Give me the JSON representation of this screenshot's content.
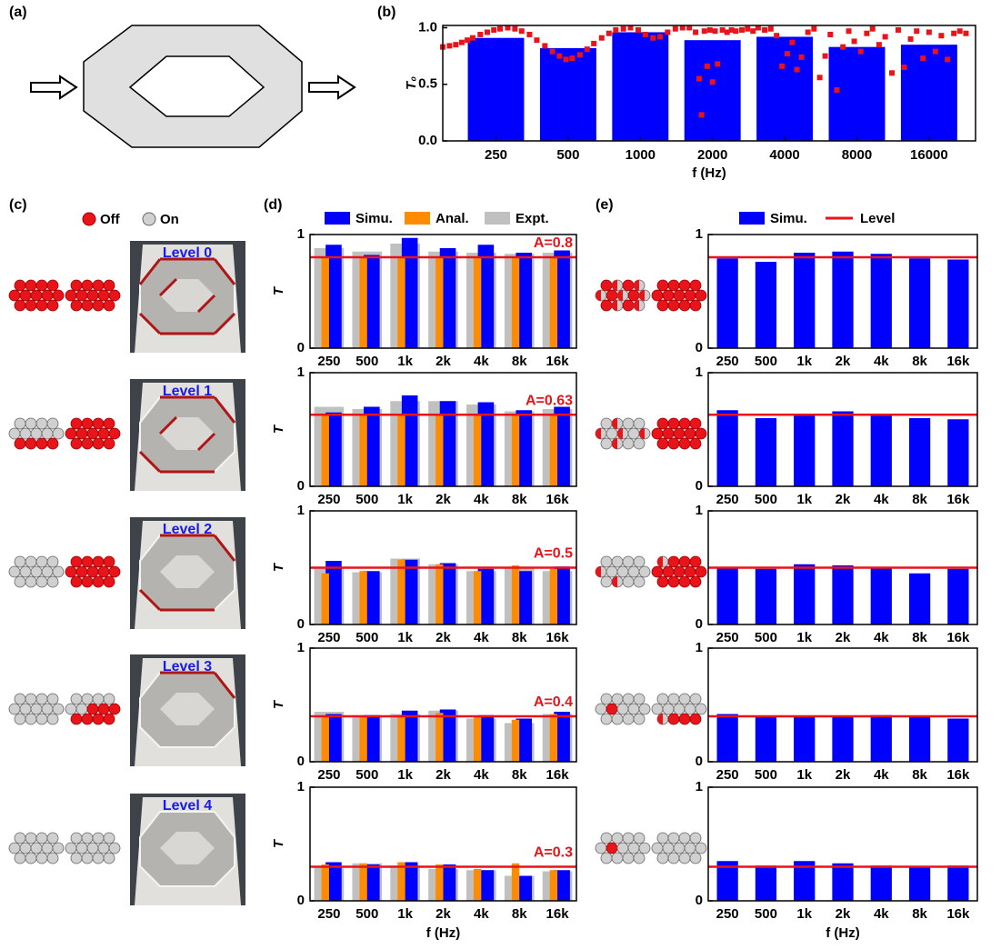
{
  "panels": [
    "(a)",
    "(b)",
    "(c)",
    "(d)",
    "(e)"
  ],
  "panel_c": {
    "legend": [
      "Off",
      "On"
    ],
    "levels": [
      "Level 0",
      "Level 1",
      "Level 2",
      "Level 3",
      "Level 4"
    ]
  },
  "chart_data": [
    {
      "type": "bar",
      "xscale": "log",
      "x": [
        250,
        500,
        1000,
        2000,
        4000,
        8000,
        16000
      ],
      "values": [
        0.91,
        0.82,
        0.96,
        0.89,
        0.92,
        0.83,
        0.85
      ],
      "color": "#0000ff",
      "overlay": {
        "type": "scatter",
        "color": "#e8141a",
        "x": [
          150,
          160,
          170,
          180,
          190,
          200,
          215,
          230,
          245,
          260,
          280,
          300,
          320,
          345,
          370,
          400,
          430,
          460,
          490,
          520,
          560,
          600,
          640,
          690,
          740,
          790,
          850,
          910,
          980,
          1050,
          1130,
          1210,
          1300,
          1400,
          1500,
          1600,
          1700,
          1760,
          1800,
          1850,
          1900,
          1950,
          2000,
          2050,
          2100,
          2200,
          2300,
          2400,
          2500,
          2650,
          2800,
          2950,
          3100,
          3300,
          3500,
          3700,
          3900,
          4100,
          4300,
          4500,
          4700,
          5000,
          5300,
          5600,
          5900,
          6200,
          6600,
          7000,
          7400,
          7800,
          8300,
          8800,
          9300,
          9900,
          10500,
          11200,
          11900,
          12600,
          13400,
          14200,
          15100,
          16000,
          17000,
          18000,
          19100,
          20300,
          21500,
          22800
        ],
        "values": [
          0.83,
          0.84,
          0.85,
          0.87,
          0.89,
          0.91,
          0.94,
          0.96,
          0.98,
          0.99,
          1.0,
          0.99,
          0.97,
          0.94,
          0.89,
          0.84,
          0.79,
          0.75,
          0.72,
          0.73,
          0.76,
          0.81,
          0.86,
          0.91,
          0.95,
          0.98,
          0.99,
          1.0,
          0.98,
          0.94,
          0.91,
          0.92,
          0.96,
          0.99,
          1.0,
          1.0,
          0.96,
          0.55,
          0.23,
          0.97,
          0.66,
          0.98,
          0.52,
          0.97,
          0.68,
          0.98,
          0.96,
          0.98,
          0.97,
          0.98,
          0.99,
          0.97,
          1.0,
          0.98,
          0.99,
          0.93,
          0.66,
          0.77,
          0.87,
          0.63,
          0.74,
          0.96,
          0.99,
          0.56,
          0.75,
          0.94,
          0.45,
          0.83,
          0.97,
          0.88,
          0.79,
          0.95,
          0.99,
          0.85,
          0.92,
          0.6,
          0.98,
          0.65,
          0.9,
          0.97,
          0.73,
          0.96,
          0.79,
          0.93,
          0.72,
          0.95,
          0.97,
          0.95
        ]
      },
      "xlim": [
        150,
        25000
      ],
      "xticks": [
        250,
        500,
        1000,
        2000,
        4000,
        8000,
        16000
      ],
      "ylim": [
        0,
        1.02
      ],
      "yticks": [
        {
          "value": 0,
          "label": "0.0"
        },
        {
          "value": 0.5,
          "label": "0.5"
        },
        {
          "value": 1,
          "label": "1.0"
        }
      ],
      "xlabel": "f (Hz)",
      "ylabel": "T₀"
    },
    {
      "type": "bar",
      "categories": [
        "250",
        "500",
        "1k",
        "2k",
        "4k",
        "8k",
        "16k"
      ],
      "series": [
        {
          "name": "Simu.",
          "color": "#0000ff",
          "values": [
            0.91,
            0.82,
            0.97,
            0.88,
            0.91,
            0.84,
            0.86
          ]
        },
        {
          "name": "Anal.",
          "color": "#ff8c00",
          "values": [
            0.8,
            0.8,
            0.8,
            0.8,
            0.8,
            0.8,
            0.8
          ]
        },
        {
          "name": "Expt.",
          "color": "#c0c0c0",
          "values": [
            0.88,
            0.85,
            0.92,
            0.85,
            0.84,
            0.83,
            0.84
          ]
        }
      ],
      "ylim": [
        0,
        1
      ],
      "yticks": [
        0,
        1
      ],
      "ylabel": "T",
      "level": 0.8,
      "level_label": "A=0.8",
      "level_color": "#e8141a"
    },
    {
      "type": "bar",
      "categories": [
        "250",
        "500",
        "1k",
        "2k",
        "4k",
        "8k",
        "16k"
      ],
      "series": [
        {
          "color": "#0000ff",
          "values": [
            0.65,
            0.7,
            0.8,
            0.75,
            0.74,
            0.67,
            0.7
          ]
        },
        {
          "color": "#ff8c00",
          "values": [
            0.63,
            0.63,
            0.63,
            0.63,
            0.63,
            0.63,
            0.63
          ]
        },
        {
          "color": "#c0c0c0",
          "values": [
            0.7,
            0.68,
            0.75,
            0.75,
            0.72,
            0.66,
            0.68
          ]
        }
      ],
      "ylim": [
        0,
        1
      ],
      "yticks": [
        0,
        1
      ],
      "ylabel": "T",
      "level": 0.63,
      "level_label": "A=0.63",
      "level_color": "#e8141a"
    },
    {
      "type": "bar",
      "categories": [
        "250",
        "500",
        "1k",
        "2k",
        "4k",
        "8k",
        "16k"
      ],
      "series": [
        {
          "color": "#0000ff",
          "values": [
            0.56,
            0.47,
            0.57,
            0.54,
            0.49,
            0.47,
            0.51
          ]
        },
        {
          "color": "#ff8c00",
          "values": [
            0.45,
            0.47,
            0.57,
            0.53,
            0.47,
            0.52,
            0.49
          ]
        },
        {
          "color": "#c0c0c0",
          "values": [
            0.5,
            0.46,
            0.58,
            0.53,
            0.47,
            0.5,
            0.47
          ]
        }
      ],
      "ylim": [
        0,
        1
      ],
      "yticks": [
        0,
        1
      ],
      "ylabel": "T",
      "level": 0.5,
      "level_label": "A=0.5",
      "level_color": "#e8141a"
    },
    {
      "type": "bar",
      "categories": [
        "250",
        "500",
        "1k",
        "2k",
        "4k",
        "8k",
        "16k"
      ],
      "series": [
        {
          "color": "#0000ff",
          "values": [
            0.42,
            0.41,
            0.45,
            0.46,
            0.41,
            0.38,
            0.44
          ]
        },
        {
          "color": "#ff8c00",
          "values": [
            0.41,
            0.4,
            0.41,
            0.43,
            0.4,
            0.37,
            0.42
          ]
        },
        {
          "color": "#c0c0c0",
          "values": [
            0.44,
            0.41,
            0.42,
            0.45,
            0.38,
            0.34,
            0.42
          ]
        }
      ],
      "ylim": [
        0,
        1
      ],
      "yticks": [
        0,
        1
      ],
      "ylabel": "T",
      "level": 0.4,
      "level_label": "A=0.4",
      "level_color": "#e8141a"
    },
    {
      "type": "bar",
      "categories": [
        "250",
        "500",
        "1k",
        "2k",
        "4k",
        "8k",
        "16k"
      ],
      "series": [
        {
          "color": "#0000ff",
          "values": [
            0.34,
            0.32,
            0.34,
            0.32,
            0.27,
            0.22,
            0.27
          ]
        },
        {
          "color": "#ff8c00",
          "values": [
            0.32,
            0.33,
            0.34,
            0.32,
            0.28,
            0.33,
            0.27
          ]
        },
        {
          "color": "#c0c0c0",
          "values": [
            0.3,
            0.33,
            0.31,
            0.28,
            0.27,
            0.22,
            0.26
          ]
        }
      ],
      "ylim": [
        0,
        1
      ],
      "yticks": [
        0,
        1
      ],
      "ylabel": "T",
      "level": 0.3,
      "level_label": "A=0.3",
      "level_color": "#e8141a",
      "xlabel": "f (Hz)"
    },
    {
      "type": "bar",
      "categories": [
        "250",
        "500",
        "1k",
        "2k",
        "4k",
        "8k",
        "16k"
      ],
      "series": [
        {
          "name": "Simu.",
          "color": "#0000ff",
          "values": [
            0.79,
            0.76,
            0.84,
            0.85,
            0.83,
            0.79,
            0.78
          ]
        }
      ],
      "ylim": [
        0,
        1
      ],
      "yticks": [
        0,
        1
      ],
      "level": 0.8,
      "level_name": "Level",
      "level_color": "#e8141a"
    },
    {
      "type": "bar",
      "categories": [
        "250",
        "500",
        "1k",
        "2k",
        "4k",
        "8k",
        "16k"
      ],
      "series": [
        {
          "color": "#0000ff",
          "values": [
            0.67,
            0.6,
            0.63,
            0.66,
            0.62,
            0.6,
            0.59
          ]
        }
      ],
      "ylim": [
        0,
        1
      ],
      "yticks": [
        0,
        1
      ],
      "level": 0.63,
      "level_color": "#e8141a"
    },
    {
      "type": "bar",
      "categories": [
        "250",
        "500",
        "1k",
        "2k",
        "4k",
        "8k",
        "16k"
      ],
      "series": [
        {
          "color": "#0000ff",
          "values": [
            0.5,
            0.49,
            0.53,
            0.52,
            0.5,
            0.45,
            0.49
          ]
        }
      ],
      "ylim": [
        0,
        1
      ],
      "yticks": [
        0,
        1
      ],
      "level": 0.5,
      "level_color": "#e8141a"
    },
    {
      "type": "bar",
      "categories": [
        "250",
        "500",
        "1k",
        "2k",
        "4k",
        "8k",
        "16k"
      ],
      "series": [
        {
          "color": "#0000ff",
          "values": [
            0.42,
            0.4,
            0.4,
            0.4,
            0.41,
            0.4,
            0.38
          ]
        }
      ],
      "ylim": [
        0,
        1
      ],
      "yticks": [
        0,
        1
      ],
      "level": 0.4,
      "level_color": "#e8141a"
    },
    {
      "type": "bar",
      "categories": [
        "250",
        "500",
        "1k",
        "2k",
        "4k",
        "8k",
        "16k"
      ],
      "series": [
        {
          "color": "#0000ff",
          "values": [
            0.35,
            0.31,
            0.35,
            0.33,
            0.31,
            0.3,
            0.31
          ]
        }
      ],
      "ylim": [
        0,
        1
      ],
      "yticks": [
        0,
        1
      ],
      "level": 0.3,
      "level_color": "#e8141a",
      "xlabel": "f (Hz)"
    }
  ]
}
